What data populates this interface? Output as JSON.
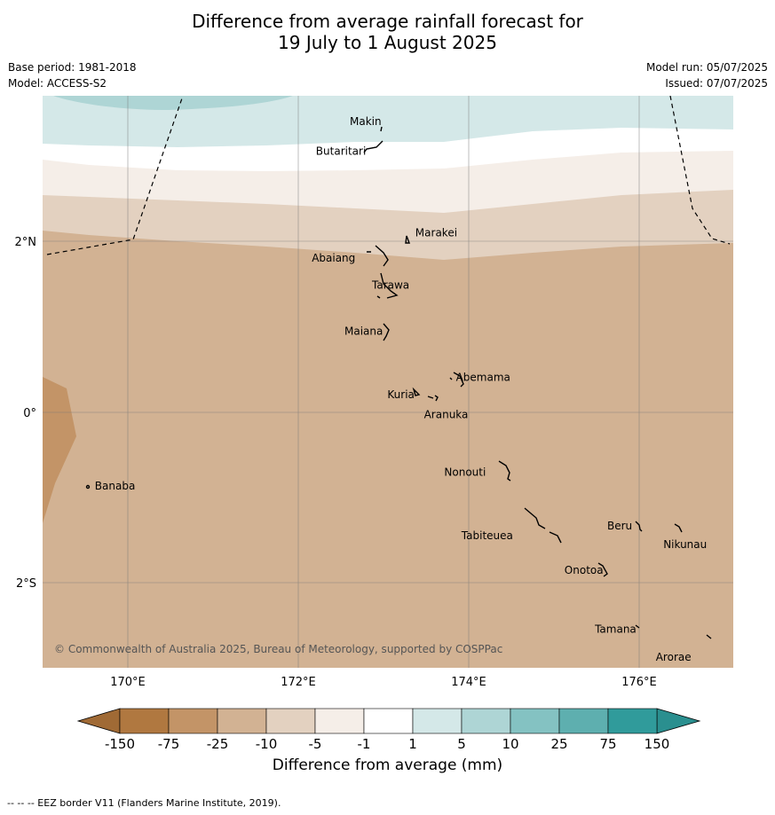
{
  "title": {
    "line1": "Difference from average rainfall forecast for",
    "line2": "19 July to 1 August 2025"
  },
  "meta": {
    "base_period": "Base period: 1981-2018",
    "model": "Model: ACCESS-S2",
    "model_run": "Model run: 05/07/2025",
    "issued": "Issued: 07/07/2025"
  },
  "map": {
    "lon_ticks": [
      "170°E",
      "172°E",
      "174°E",
      "176°E"
    ],
    "lat_ticks": [
      "2°N",
      "0°",
      "2°S"
    ],
    "copyright": "© Commonwealth of Australia 2025, Bureau of Meteorology, supported by COSPPac",
    "islands": [
      {
        "name": "Makin",
        "lon": 173.0,
        "lat": 3.4
      },
      {
        "name": "Butaritari",
        "lon": 172.8,
        "lat": 3.1
      },
      {
        "name": "Marakei",
        "lon": 173.3,
        "lat": 2.0
      },
      {
        "name": "Abaiang",
        "lon": 172.95,
        "lat": 1.8
      },
      {
        "name": "Tarawa",
        "lon": 173.0,
        "lat": 1.4
      },
      {
        "name": "Maiana",
        "lon": 173.0,
        "lat": 0.9
      },
      {
        "name": "Abemama",
        "lon": 173.85,
        "lat": 0.4
      },
      {
        "name": "Kuria",
        "lon": 173.4,
        "lat": 0.22
      },
      {
        "name": "Aranuka",
        "lon": 173.6,
        "lat": 0.15
      },
      {
        "name": "Nonouti",
        "lon": 174.4,
        "lat": -0.65
      },
      {
        "name": "Banaba",
        "lon": 169.55,
        "lat": -0.86
      },
      {
        "name": "Tabiteuea",
        "lon": 174.8,
        "lat": -1.3
      },
      {
        "name": "Beru",
        "lon": 176.0,
        "lat": -1.33
      },
      {
        "name": "Nikunau",
        "lon": 176.45,
        "lat": -1.37
      },
      {
        "name": "Onotoa",
        "lon": 175.55,
        "lat": -1.85
      },
      {
        "name": "Tamana",
        "lon": 175.98,
        "lat": -2.5
      },
      {
        "name": "Arorae",
        "lon": 176.82,
        "lat": -2.65
      }
    ]
  },
  "colorbar": {
    "title": "Difference from average (mm)",
    "ticks": [
      "-150",
      "-75",
      "-25",
      "-10",
      "-5",
      "-1",
      "1",
      "5",
      "10",
      "25",
      "75",
      "150"
    ],
    "colors": [
      "#b07840",
      "#c39467",
      "#d2b293",
      "#e3d1c0",
      "#f5eee8",
      "#ffffff",
      "#d4e8e8",
      "#aed5d5",
      "#84c2c2",
      "#5eafaf",
      "#309b9b"
    ],
    "under_color": "#a06a35",
    "over_color": "#2a8f8f"
  },
  "footnote": "-- -- -- EEZ border V11 (Flanders Marine Institute, 2019)."
}
